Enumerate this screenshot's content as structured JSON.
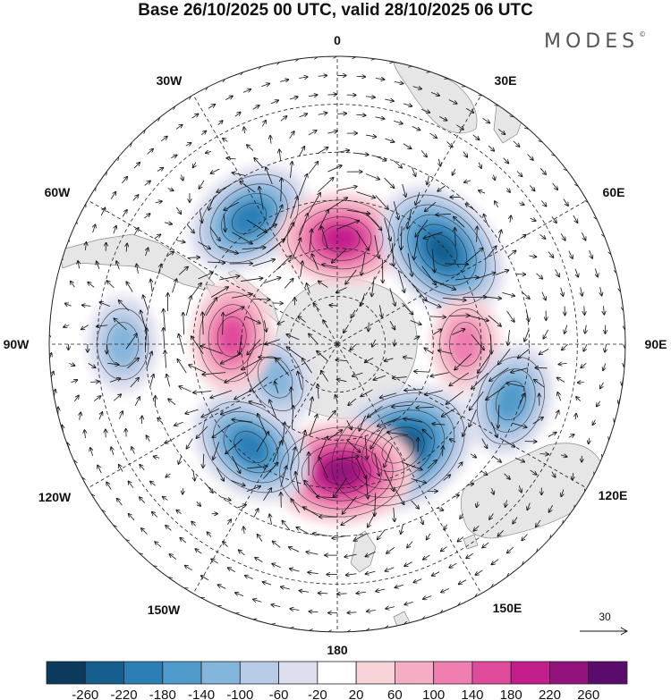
{
  "title": "Base 26/10/2025 00 UTC, valid 28/10/2025 06 UTC",
  "brand": "MODES",
  "brand_mark": "©",
  "longitude_labels": {
    "lon_0": "0",
    "lon_30e": "30E",
    "lon_60e": "60E",
    "lon_90e": "90E",
    "lon_120e": "120E",
    "lon_150e": "150E",
    "lon_180": "180",
    "lon_150w": "150W",
    "lon_120w": "120W",
    "lon_90w": "90W",
    "lon_60w": "60W",
    "lon_30w": "30W"
  },
  "reference_vector": {
    "value": "30",
    "icon": "arrow-right-icon"
  },
  "colorbar": {
    "ticks": [
      "-260",
      "-220",
      "-180",
      "-140",
      "-100",
      "-60",
      "-20",
      "20",
      "60",
      "100",
      "140",
      "180",
      "220",
      "260"
    ],
    "colors": [
      "#0b3a5c",
      "#155f8e",
      "#2b7fb6",
      "#4f9bcb",
      "#84b5db",
      "#b7cbe6",
      "#dddeee",
      "#ffffff",
      "#f8d3d8",
      "#f5adc3",
      "#ee7fb0",
      "#e04b9c",
      "#c21f8c",
      "#93127c",
      "#5a0c6c"
    ]
  },
  "anomaly_centers": [
    {
      "name": "neg-atlantic",
      "lon": -35,
      "colat": 48,
      "value": -200
    },
    {
      "name": "pos-south-atlantic",
      "lon": 2,
      "colat": 33,
      "value": 200
    },
    {
      "name": "neg-indian",
      "lon": 48,
      "colat": 44,
      "value": -240
    },
    {
      "name": "pos-indian",
      "lon": 90,
      "colat": 40,
      "value": 120
    },
    {
      "name": "neg-australia",
      "lon": 108,
      "colat": 57,
      "value": -150
    },
    {
      "name": "neg-tasman",
      "lon": 150,
      "colat": 38,
      "value": -280
    },
    {
      "name": "pos-ross",
      "lon": 178,
      "colat": 40,
      "value": 240
    },
    {
      "name": "neg-pacific",
      "lon": -140,
      "colat": 42,
      "value": -200
    },
    {
      "name": "neg-amundsen",
      "lon": -118,
      "colat": 22,
      "value": -120
    },
    {
      "name": "pos-bellingshausen",
      "lon": -86,
      "colat": 33,
      "value": 160
    },
    {
      "name": "neg-east-pacific",
      "lon": -90,
      "colat": 67,
      "value": -100
    }
  ]
}
